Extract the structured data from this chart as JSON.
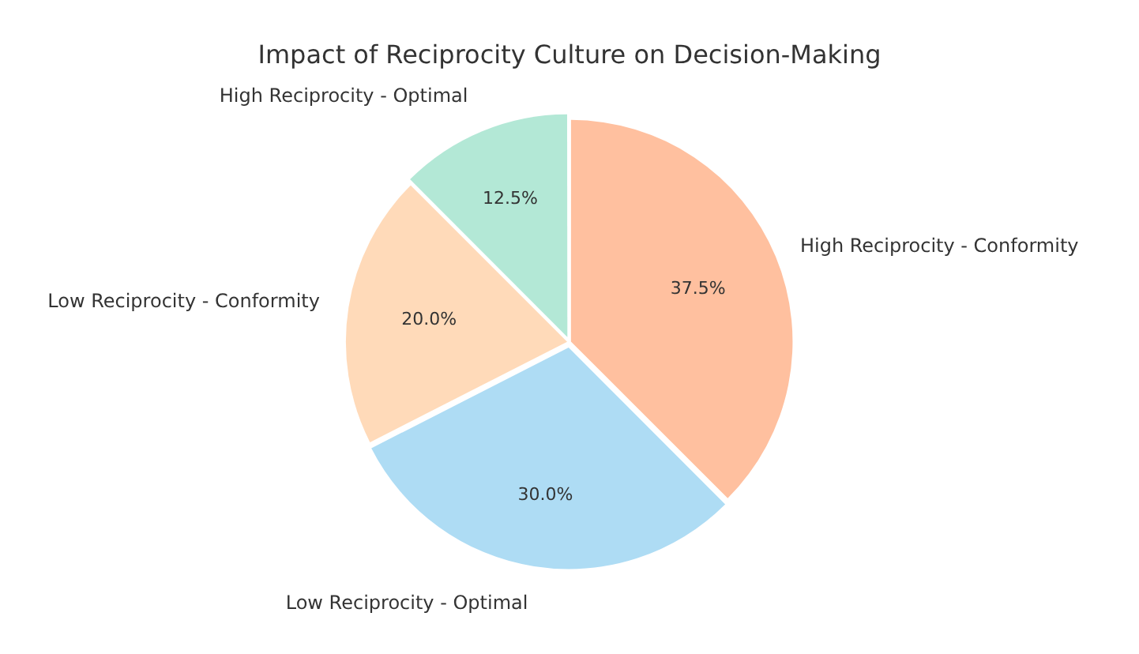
{
  "chart_data": {
    "type": "pie",
    "title": "Impact of Reciprocity Culture on Decision-Making",
    "categories": [
      "High Reciprocity - Conformity",
      "Low Reciprocity - Optimal",
      "Low Reciprocity - Conformity",
      "High Reciprocity - Optimal"
    ],
    "values": [
      37.5,
      30,
      20,
      12.5
    ],
    "colors": [
      "#ffc09f",
      "#aedcf4",
      "#ffdab9",
      "#b3e8d6"
    ],
    "value_labels": [
      "37.5%",
      "30.0%",
      "20.0%",
      "12.5%"
    ],
    "legend": false
  }
}
